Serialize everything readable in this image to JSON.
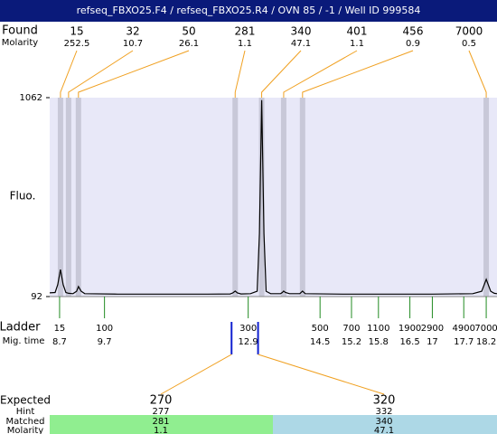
{
  "chart_data": {
    "type": "line",
    "title": "refseq_FBXO25.F4 / refseq_FBXO25.R4 / OVN 85 / -1 / Well ID 999584",
    "y_label": "Fluo.",
    "x": [
      8.48,
      8.6,
      8.66,
      8.72,
      8.78,
      8.84,
      8.9,
      9.0,
      9.08,
      9.12,
      9.18,
      9.26,
      10.0,
      11.0,
      12.0,
      12.5,
      12.56,
      12.61,
      12.66,
      12.74,
      12.95,
      13.1,
      13.15,
      13.2,
      13.25,
      13.3,
      13.4,
      13.62,
      13.66,
      13.69,
      13.73,
      13.82,
      14.05,
      14.11,
      14.17,
      15.0,
      16.0,
      17.0,
      17.9,
      18.1,
      18.2,
      18.3,
      18.38,
      18.44
    ],
    "values": [
      110,
      112,
      150,
      224,
      150,
      112,
      108,
      106,
      118,
      141,
      118,
      106,
      104,
      104,
      104,
      105,
      110,
      119,
      110,
      105,
      106,
      118,
      400,
      1050,
      400,
      118,
      106,
      106,
      112,
      119,
      112,
      106,
      106,
      119,
      106,
      104,
      104,
      104,
      106,
      118,
      176,
      118,
      108,
      106
    ],
    "color": "#000000",
    "xlim": [
      8.48,
      18.44
    ],
    "ylim": [
      92,
      1062
    ],
    "yticks": [
      92,
      1062
    ],
    "found": {
      "label": "Found",
      "molarity_label": "Molarity",
      "sizes": [
        15,
        32,
        50,
        281,
        340,
        401,
        456,
        7000
      ],
      "molarity": [
        252.5,
        10.7,
        26.1,
        1.1,
        47.1,
        1.1,
        0.9,
        0.5
      ],
      "times": [
        8.72,
        8.9,
        9.12,
        12.61,
        13.2,
        13.69,
        14.11,
        18.2
      ]
    },
    "ladder": {
      "label": "Ladder",
      "time_label": "Mig. time",
      "sizes": [
        15,
        100,
        300,
        500,
        700,
        1100,
        1900,
        2900,
        4900,
        7000
      ],
      "times": [
        8.7,
        9.7,
        12.9,
        14.5,
        15.2,
        15.8,
        16.5,
        17,
        17.7,
        18.2
      ]
    },
    "expected": {
      "label": "Expected",
      "hint_label": "Hint",
      "matched_label": "Matched",
      "molarity_label": "Molarity",
      "values": [
        270,
        320
      ],
      "hint": [
        277,
        332
      ],
      "matched": [
        281,
        340
      ],
      "molarity": [
        1.1,
        47.1
      ]
    }
  }
}
